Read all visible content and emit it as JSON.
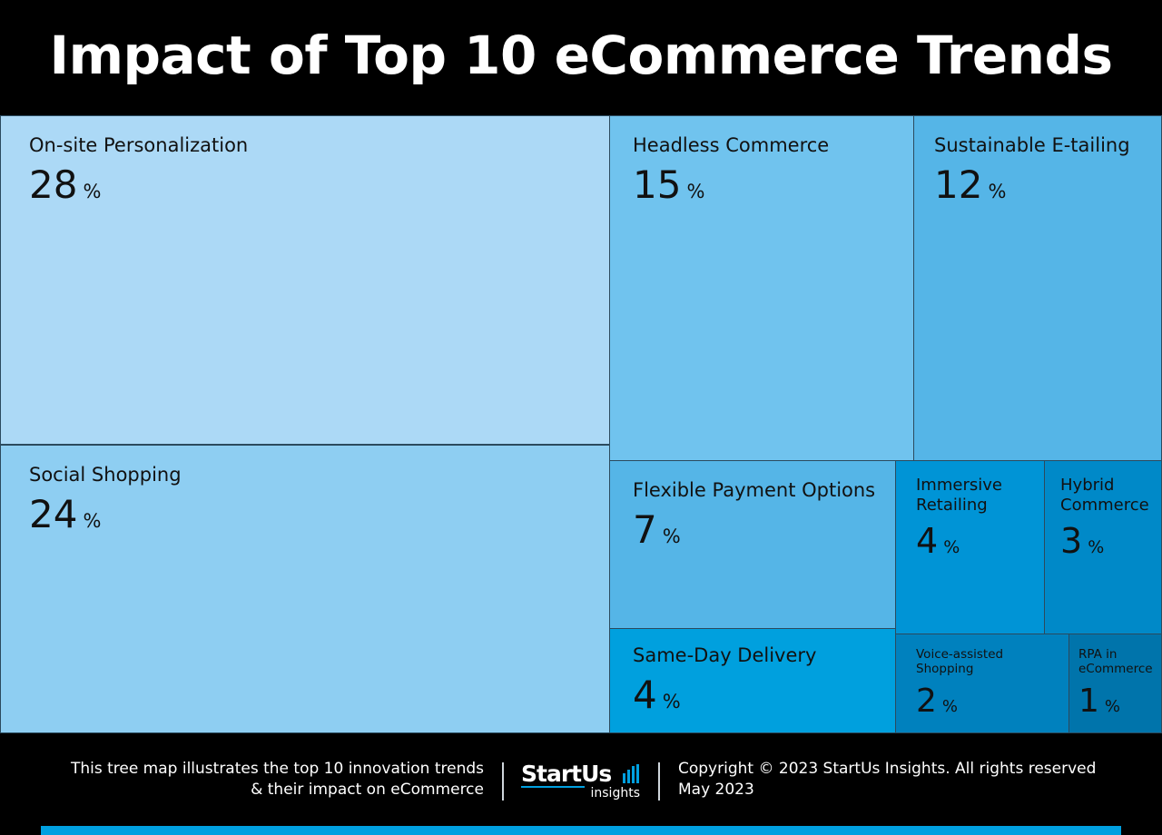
{
  "title": "Impact of Top 10 eCommerce Trends",
  "chart_data": {
    "type": "treemap",
    "title": "Impact of Top 10 eCommerce Trends",
    "unit": "%",
    "items": [
      {
        "name": "On-site Personalization",
        "value": 28,
        "color": "#acd9f6"
      },
      {
        "name": "Social Shopping",
        "value": 24,
        "color": "#8ecef2"
      },
      {
        "name": "Headless Commerce",
        "value": 15,
        "color": "#70c3ee"
      },
      {
        "name": "Sustainable E-tailing",
        "value": 12,
        "color": "#55b5e7"
      },
      {
        "name": "Flexible Payment Options",
        "value": 7,
        "color": "#55b5e7"
      },
      {
        "name": "Immersive Retailing",
        "value": 4,
        "color": "#0094d6"
      },
      {
        "name": "Hybrid Commerce",
        "value": 3,
        "color": "#0089c8"
      },
      {
        "name": "Same-Day Delivery",
        "value": 4,
        "color": "#00a0de"
      },
      {
        "name": "Voice-assisted Shopping",
        "value": 2,
        "color": "#0081be"
      },
      {
        "name": "RPA in eCommerce",
        "value": 1,
        "color": "#0074ab"
      }
    ]
  },
  "footer": {
    "desc_line1": "This tree map illustrates the top 10 innovation trends",
    "desc_line2": "& their impact on eCommerce",
    "logo_main": "StartUs",
    "logo_sub": "insights",
    "copyright_line1": "Copyright © 2023 StartUs Insights. All rights reserved",
    "copyright_line2": "May 2023"
  },
  "colors": {
    "background": "#000000",
    "accent_bar": "#00a0e0",
    "cell_border": "#2b4a5e"
  }
}
